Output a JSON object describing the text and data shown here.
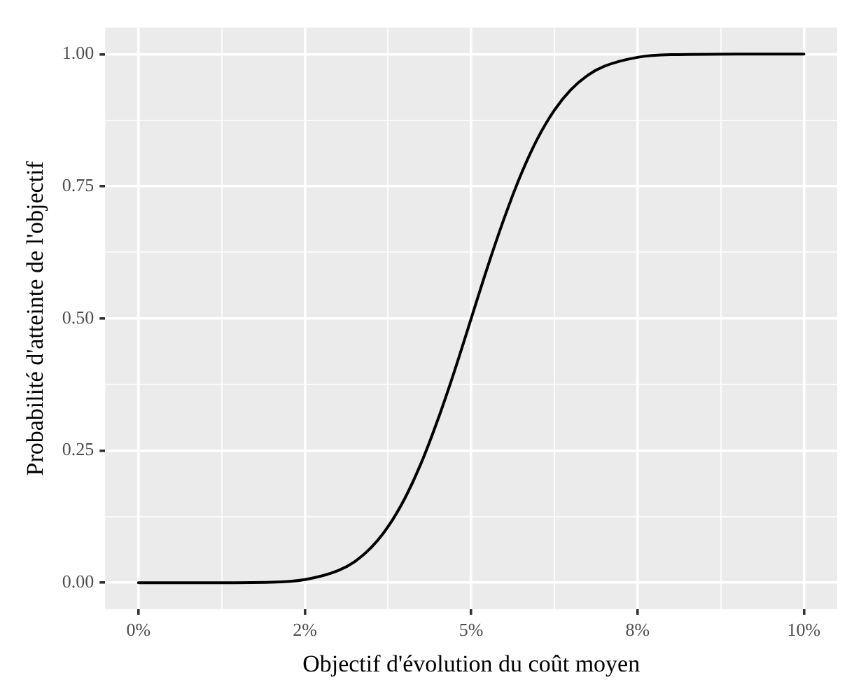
{
  "chart_data": {
    "type": "line",
    "xlabel": "Objectif d'évolution du coût moyen",
    "ylabel": "Probabilité d'atteinte de l'objectif",
    "x": [
      0,
      1,
      2,
      2.5,
      3,
      3.25,
      3.5,
      3.75,
      4,
      4.25,
      4.5,
      4.75,
      5,
      5.25,
      5.5,
      5.75,
      6,
      6.25,
      6.5,
      6.75,
      7,
      7.5,
      8,
      9,
      10
    ],
    "series": [
      {
        "color": "#000000",
        "values": [
          0,
          0,
          0.001,
          0.006,
          0.023,
          0.04,
          0.067,
          0.106,
          0.159,
          0.227,
          0.309,
          0.401,
          0.5,
          0.599,
          0.691,
          0.773,
          0.841,
          0.894,
          0.933,
          0.96,
          0.977,
          0.994,
          0.999,
          1,
          1
        ]
      }
    ],
    "xlim": [
      -0.5,
      10.5
    ],
    "ylim": [
      -0.05,
      1.05
    ],
    "xticks": [
      {
        "value": 0,
        "label": "0%"
      },
      {
        "value": 1.25,
        "label": null
      },
      {
        "value": 2.5,
        "label": "2%"
      },
      {
        "value": 3.75,
        "label": null
      },
      {
        "value": 5,
        "label": "5%"
      },
      {
        "value": 6.25,
        "label": null
      },
      {
        "value": 7.5,
        "label": "8%"
      },
      {
        "value": 8.75,
        "label": null
      },
      {
        "value": 10,
        "label": "10%"
      }
    ],
    "yticks": [
      {
        "value": 0,
        "label": "0.00"
      },
      {
        "value": 0.125,
        "label": null
      },
      {
        "value": 0.25,
        "label": "0.25"
      },
      {
        "value": 0.375,
        "label": null
      },
      {
        "value": 0.5,
        "label": "0.50"
      },
      {
        "value": 0.625,
        "label": null
      },
      {
        "value": 0.75,
        "label": "0.75"
      },
      {
        "value": 0.875,
        "label": null
      },
      {
        "value": 1,
        "label": "1.00"
      }
    ],
    "grid": true,
    "legend": false,
    "marker": "none",
    "line_style": "solid"
  }
}
